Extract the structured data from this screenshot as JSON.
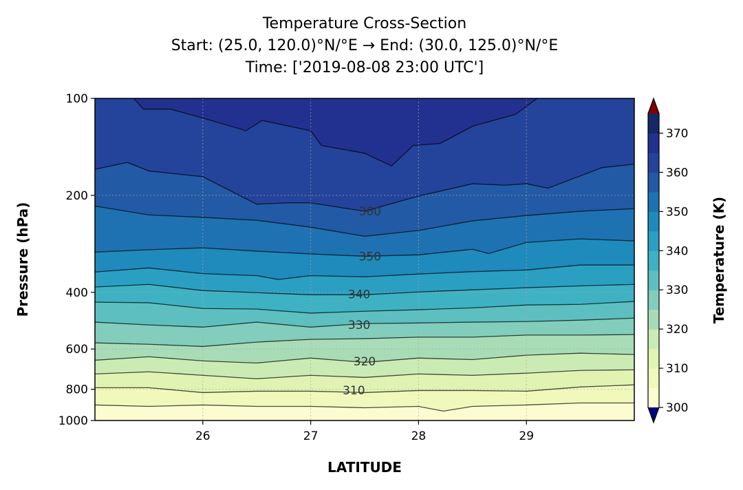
{
  "chart_data": {
    "type": "contour",
    "title_lines": [
      "Temperature Cross-Section",
      "Start: (25.0, 120.0)°N/°E → End: (30.0, 125.0)°N/°E",
      "Time: ['2019-08-08 23:00 UTC']"
    ],
    "xlabel": "LATITUDE",
    "ylabel": "Pressure (hPa)",
    "colorbar_label": "Temperature (K)",
    "xlim": [
      25.0,
      30.0
    ],
    "ylim": [
      1000,
      100
    ],
    "y_scale": "log",
    "x_ticks": [
      26,
      27,
      28,
      29
    ],
    "y_ticks": [
      100,
      200,
      400,
      600,
      800,
      1000
    ],
    "colorbar_ticks": [
      300,
      310,
      320,
      330,
      340,
      350,
      360,
      370
    ],
    "colorbar_range": [
      300,
      375
    ],
    "colorbar_extend": "both",
    "extend_colors": {
      "over": "#800000",
      "under": "#00007f"
    },
    "colormap": "YlGnBu",
    "grid": true,
    "levels": [
      300,
      305,
      310,
      315,
      320,
      325,
      330,
      335,
      340,
      345,
      350,
      355,
      360,
      365,
      370,
      375
    ],
    "band_colors": [
      "#fbfdd0",
      "#f0f9bb",
      "#e1f3b2",
      "#cbebb4",
      "#a8dcb6",
      "#82cdbb",
      "#5dbfc0",
      "#3eb2c3",
      "#2a9fc2",
      "#1f8abc",
      "#1f72b1",
      "#225aa5",
      "#24439a",
      "#223190",
      "#142766"
    ],
    "contours": [
      {
        "level": 305,
        "points": [
          [
            25,
            895
          ],
          [
            25.5,
            904
          ],
          [
            26,
            895
          ],
          [
            26.5,
            904
          ],
          [
            27,
            904
          ],
          [
            27.5,
            913
          ],
          [
            28,
            904
          ],
          [
            28.23,
            935
          ],
          [
            28.5,
            904
          ],
          [
            29,
            895
          ],
          [
            29.5,
            882
          ],
          [
            30,
            882
          ]
        ]
      },
      {
        "level": 310,
        "points": [
          [
            25,
            791
          ],
          [
            25.5,
            791
          ],
          [
            26,
            819
          ],
          [
            26.5,
            811
          ],
          [
            27,
            811
          ],
          [
            27.5,
            819
          ],
          [
            28,
            807
          ],
          [
            28.5,
            807
          ],
          [
            29,
            811
          ],
          [
            29.5,
            787
          ],
          [
            30,
            775
          ]
        ]
      },
      {
        "level": 315,
        "points": [
          [
            25,
            717
          ],
          [
            25.5,
            706
          ],
          [
            26,
            724
          ],
          [
            26.5,
            742
          ],
          [
            27,
            724
          ],
          [
            27.5,
            735
          ],
          [
            28,
            717
          ],
          [
            28.5,
            724
          ],
          [
            29,
            713
          ],
          [
            29.5,
            699
          ],
          [
            30,
            696
          ]
        ]
      },
      {
        "level": 320,
        "points": [
          [
            25,
            650
          ],
          [
            25.5,
            634
          ],
          [
            26,
            653
          ],
          [
            26.5,
            663
          ],
          [
            27,
            640
          ],
          [
            27.5,
            660
          ],
          [
            28,
            640
          ],
          [
            28.5,
            647
          ],
          [
            29,
            627
          ],
          [
            29.5,
            618
          ],
          [
            30,
            624
          ]
        ]
      },
      {
        "level": 325,
        "points": [
          [
            25,
            574
          ],
          [
            25.5,
            580
          ],
          [
            26,
            589
          ],
          [
            26.5,
            571
          ],
          [
            27,
            560
          ],
          [
            27.5,
            557
          ],
          [
            28,
            551
          ],
          [
            28.5,
            551
          ],
          [
            29,
            543
          ],
          [
            29.5,
            543
          ],
          [
            30,
            541
          ]
        ]
      },
      {
        "level": 330,
        "points": [
          [
            25,
            495
          ],
          [
            25.5,
            505
          ],
          [
            26,
            513
          ],
          [
            26.5,
            495
          ],
          [
            27,
            513
          ],
          [
            27.5,
            500
          ],
          [
            28,
            498
          ],
          [
            28.5,
            495
          ],
          [
            29,
            493
          ],
          [
            29.5,
            488
          ],
          [
            30,
            481
          ]
        ]
      },
      {
        "level": 335,
        "points": [
          [
            25,
            429
          ],
          [
            25.5,
            431
          ],
          [
            26,
            449
          ],
          [
            26.5,
            451
          ],
          [
            27,
            464
          ],
          [
            27.5,
            458
          ],
          [
            28,
            453
          ],
          [
            28.5,
            447
          ],
          [
            29,
            438
          ],
          [
            29.5,
            436
          ],
          [
            30,
            427
          ]
        ]
      },
      {
        "level": 340,
        "points": [
          [
            25,
            385
          ],
          [
            25.5,
            378
          ],
          [
            26,
            395
          ],
          [
            26.5,
            401
          ],
          [
            27,
            407
          ],
          [
            27.5,
            407
          ],
          [
            28,
            399
          ],
          [
            28.5,
            393
          ],
          [
            29,
            387
          ],
          [
            29.5,
            382
          ],
          [
            30,
            378
          ]
        ]
      },
      {
        "level": 345,
        "points": [
          [
            25,
            346
          ],
          [
            25.5,
            336
          ],
          [
            26,
            350
          ],
          [
            26.5,
            355
          ],
          [
            26.7,
            365
          ],
          [
            27,
            355
          ],
          [
            27.5,
            358
          ],
          [
            28,
            351
          ],
          [
            28.5,
            345
          ],
          [
            29,
            341
          ],
          [
            29.5,
            329
          ],
          [
            30,
            329
          ]
        ]
      },
      {
        "level": 350,
        "points": [
          [
            25,
            300
          ],
          [
            25.5,
            295
          ],
          [
            26,
            291
          ],
          [
            26.5,
            298
          ],
          [
            27,
            304
          ],
          [
            27.5,
            309
          ],
          [
            28,
            306
          ],
          [
            28.5,
            294
          ],
          [
            28.65,
            303
          ],
          [
            29,
            280
          ],
          [
            29.5,
            273
          ],
          [
            30,
            277
          ]
        ]
      },
      {
        "level": 355,
        "points": [
          [
            25,
            216
          ],
          [
            25.5,
            230
          ],
          [
            26,
            234
          ],
          [
            26.5,
            239
          ],
          [
            27,
            251
          ],
          [
            27.5,
            268
          ],
          [
            28,
            257
          ],
          [
            28.5,
            240
          ],
          [
            29,
            231
          ],
          [
            29.5,
            224
          ],
          [
            30,
            220
          ]
        ]
      },
      {
        "level": 360,
        "points": [
          [
            25,
            166
          ],
          [
            25.3,
            158
          ],
          [
            25.5,
            168
          ],
          [
            26,
            175
          ],
          [
            26.5,
            213
          ],
          [
            26.8,
            211
          ],
          [
            27,
            211
          ],
          [
            27.5,
            224
          ],
          [
            28,
            201
          ],
          [
            28.5,
            184
          ],
          [
            28.8,
            186
          ],
          [
            29,
            184
          ],
          [
            29.2,
            190
          ],
          [
            29.5,
            174
          ],
          [
            29.7,
            164
          ],
          [
            30,
            160
          ]
        ]
      },
      {
        "level": 365,
        "points": [
          [
            25.36,
            100
          ],
          [
            25.45,
            108
          ],
          [
            25.7,
            108
          ],
          [
            26,
            115
          ],
          [
            26.4,
            126
          ],
          [
            26.55,
            117
          ],
          [
            27,
            126
          ],
          [
            27.1,
            140
          ],
          [
            27.5,
            148
          ],
          [
            27.75,
            162
          ],
          [
            27.95,
            140
          ],
          [
            28.2,
            138
          ],
          [
            28.5,
            122
          ],
          [
            28.9,
            112
          ],
          [
            29.1,
            100
          ]
        ]
      }
    ],
    "contour_labels": [
      {
        "text": "310",
        "lat": 27.4,
        "p": 805
      },
      {
        "text": "320",
        "lat": 27.5,
        "p": 655
      },
      {
        "text": "330",
        "lat": 27.45,
        "p": 505
      },
      {
        "text": "340",
        "lat": 27.45,
        "p": 405
      },
      {
        "text": "350",
        "lat": 27.55,
        "p": 309
      },
      {
        "text": "360",
        "lat": 27.55,
        "p": 224
      }
    ]
  }
}
